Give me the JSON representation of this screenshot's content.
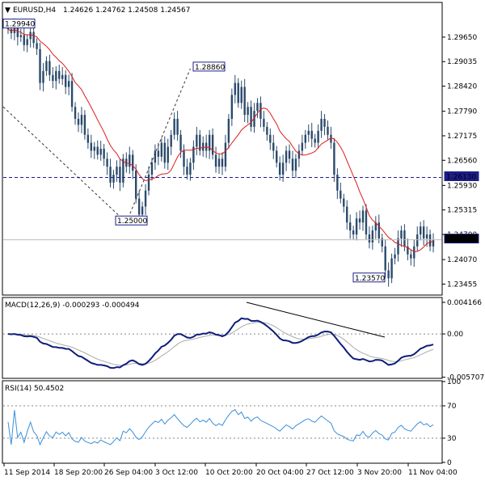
{
  "header": {
    "symbol": "EURUSD,H4",
    "ohlc": "1.24626 1.24762 1.24508 1.24567"
  },
  "macd_header": "MACD(12,26,9) -0.000293 -0.000494",
  "rsi_header": "RSI(14) 50.4502",
  "colors": {
    "candle": "#2b4a6b",
    "ma_line": "#dd1c1c",
    "macd_main": "#0d1d7a",
    "macd_signal": "#aaaaaa",
    "rsi_line": "#3a8fd8",
    "support_line": "#1d1d8a",
    "label_border": "#1d1d8a",
    "grid_dots": "#888888"
  },
  "chart_data": [
    {
      "type": "candlestick",
      "title": "EURUSD,H4",
      "ylim": [
        1.232,
        1.305
      ],
      "y_ticks": [
        "1.29650",
        "1.29035",
        "1.28420",
        "1.27790",
        "1.27175",
        "1.26560",
        "1.25930",
        "1.25315",
        "1.24700",
        "1.24070",
        "1.23455"
      ],
      "x_ticks": [
        "11 Sep 2014",
        "18 Sep 20:00",
        "26 Sep 04:00",
        "3 Oct 12:00",
        "10 Oct 20:00",
        "20 Oct 04:00",
        "27 Oct 12:00",
        "3 Nov 20:00",
        "11 Nov 04:00"
      ],
      "ma_period_note": "",
      "horizontal_line": {
        "value": 1.2613,
        "label": "1.26130",
        "style": "dashed"
      },
      "current_price": {
        "value": 1.24567,
        "label": "1.24567"
      },
      "annotations": [
        {
          "label": "1.29940",
          "value": 1.2994
        },
        {
          "label": "1.28860",
          "value": 1.2886
        },
        {
          "label": "1.25000",
          "value": 1.25
        },
        {
          "label": "1.23570",
          "value": 1.2357
        }
      ],
      "close": [
        1.2985,
        1.2975,
        1.2992,
        1.2965,
        1.297,
        1.2945,
        1.296,
        1.2978,
        1.295,
        1.2935,
        1.285,
        1.288,
        1.2905,
        1.287,
        1.2855,
        1.288,
        1.286,
        1.287,
        1.284,
        1.2855,
        1.279,
        1.276,
        1.2745,
        1.277,
        1.272,
        1.27,
        1.268,
        1.269,
        1.267,
        1.2685,
        1.266,
        1.264,
        1.26,
        1.262,
        1.264,
        1.26,
        1.266,
        1.264,
        1.267,
        1.263,
        1.256,
        1.252,
        1.254,
        1.258,
        1.262,
        1.265,
        1.268,
        1.2665,
        1.27,
        1.265,
        1.269,
        1.272,
        1.276,
        1.272,
        1.268,
        1.264,
        1.262,
        1.265,
        1.269,
        1.272,
        1.268,
        1.27,
        1.268,
        1.272,
        1.267,
        1.264,
        1.266,
        1.264,
        1.27,
        1.276,
        1.282,
        1.285,
        1.28,
        1.284,
        1.277,
        1.279,
        1.274,
        1.278,
        1.28,
        1.276,
        1.274,
        1.272,
        1.27,
        1.268,
        1.265,
        1.262,
        1.265,
        1.268,
        1.266,
        1.263,
        1.266,
        1.268,
        1.27,
        1.272,
        1.273,
        1.271,
        1.27,
        1.273,
        1.276,
        1.274,
        1.272,
        1.27,
        1.262,
        1.258,
        1.256,
        1.254,
        1.25,
        1.248,
        1.247,
        1.251,
        1.25,
        1.253,
        1.247,
        1.245,
        1.248,
        1.25,
        1.246,
        1.244,
        1.238,
        1.236,
        1.241,
        1.242,
        1.246,
        1.248,
        1.244,
        1.242,
        1.241,
        1.244,
        1.247,
        1.249,
        1.246,
        1.247,
        1.244,
        1.2457
      ]
    },
    {
      "type": "line",
      "title": "MACD(12,26,9) -0.000293 -0.000494",
      "ylim": [
        -0.00575,
        0.0047
      ],
      "y_ticks": [
        "0.004166",
        "0.00",
        "-0.005707"
      ]
    },
    {
      "type": "line",
      "title": "RSI(14) 50.4502",
      "ylim": [
        0,
        100
      ],
      "y_ticks": [
        "100",
        "70",
        "30",
        "0"
      ],
      "levels": [
        70,
        30
      ]
    }
  ]
}
